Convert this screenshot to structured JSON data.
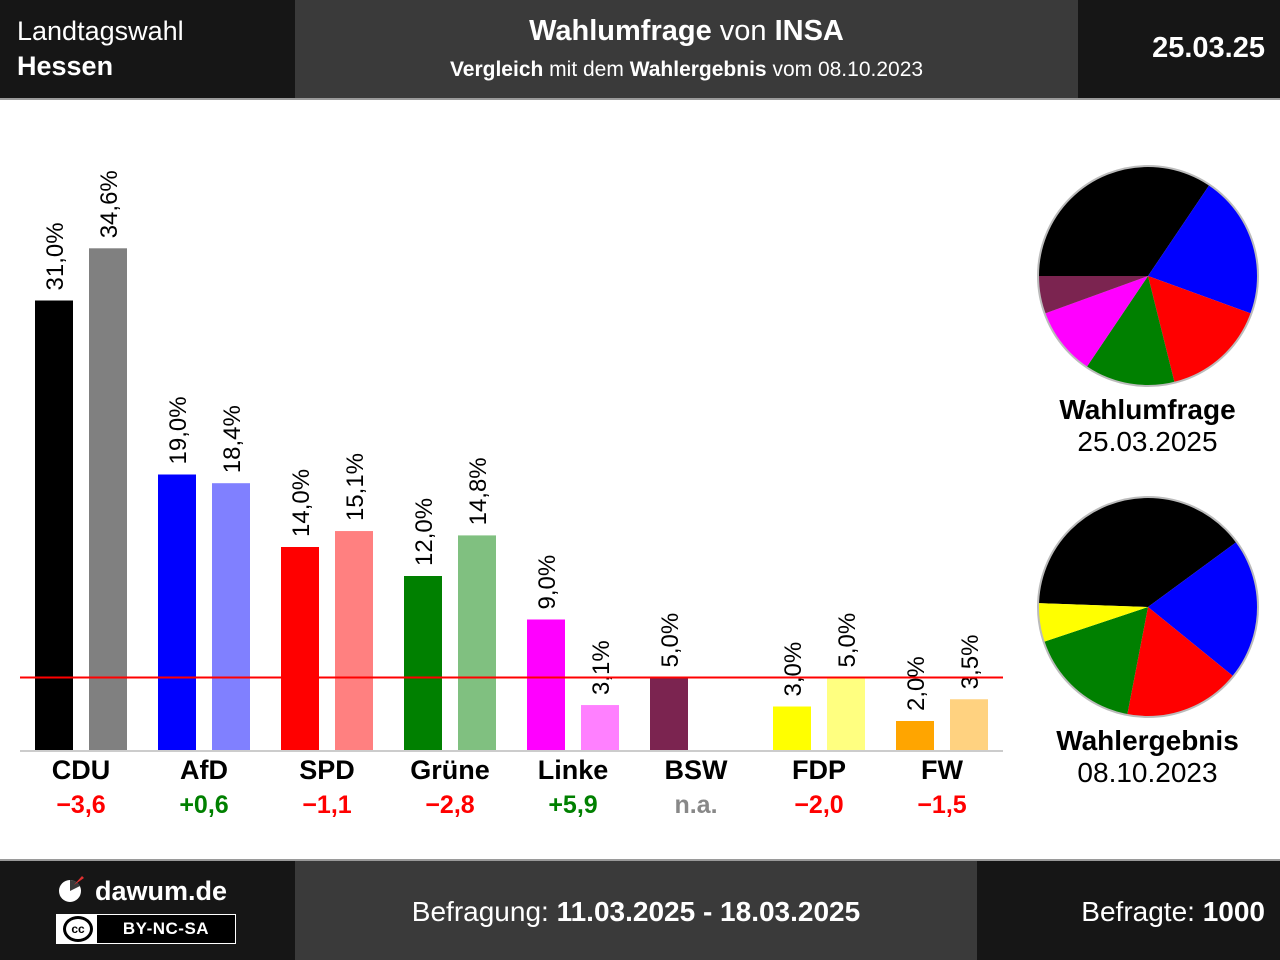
{
  "header": {
    "region_line1": "Landtagswahl",
    "region_line2": "Hessen",
    "title_bold1": "Wahlumfrage",
    "title_mid": " von ",
    "title_bold2": "INSA",
    "subtitle_bold1": "Vergleich",
    "subtitle_mid1": " mit dem ",
    "subtitle_bold2": "Wahlergebnis",
    "subtitle_mid2": " vom 08.10.2023",
    "date": "25.03.25"
  },
  "colors": {
    "threshold_line": "#ff0000",
    "diff_positive": "#008000",
    "diff_negative": "#ff0000",
    "diff_na": "#888888"
  },
  "chart_data": {
    "type": "bar",
    "categories": [
      "CDU",
      "AfD",
      "SPD",
      "Grüne",
      "Linke",
      "BSW",
      "FDP",
      "FW"
    ],
    "series": [
      {
        "values": [
          31.0,
          19.0,
          14.0,
          12.0,
          9.0,
          5.0,
          3.0,
          2.0
        ],
        "value_labels": [
          "31,0%",
          "19,0%",
          "14,0%",
          "12,0%",
          "9,0%",
          "5,0%",
          "3,0%",
          "2,0%"
        ],
        "colors": [
          "#000000",
          "#0000ff",
          "#ff0000",
          "#008000",
          "#ff00ff",
          "#7b2450",
          "#ffff00",
          "#ffa500"
        ]
      },
      {
        "values": [
          34.6,
          18.4,
          15.1,
          14.8,
          3.1,
          null,
          5.0,
          3.5
        ],
        "value_labels": [
          "34,6%",
          "18,4%",
          "15,1%",
          "14,8%",
          "3,1%",
          "",
          "5,0%",
          "3,5%"
        ],
        "colors": [
          "#808080",
          "#8080ff",
          "#ff8080",
          "#80c080",
          "#ff80ff",
          "#bd92a8",
          "#ffff80",
          "#ffd280"
        ]
      }
    ],
    "differences": [
      "−3,6",
      "+0,6",
      "−1,1",
      "−2,8",
      "+5,9",
      "n.a.",
      "−2,0",
      "−1,5"
    ],
    "difference_signs": [
      "neg",
      "pos",
      "neg",
      "neg",
      "pos",
      "na",
      "neg",
      "neg"
    ],
    "threshold": 5.0,
    "ylim": [
      0,
      36
    ],
    "grid": false
  },
  "pies": [
    {
      "title": "Wahlumfrage",
      "date": "25.03.2025",
      "slices": [
        {
          "party": "CDU",
          "value": 31.0,
          "color": "#000000"
        },
        {
          "party": "AfD",
          "value": 19.0,
          "color": "#0000ff"
        },
        {
          "party": "SPD",
          "value": 14.0,
          "color": "#ff0000"
        },
        {
          "party": "Grüne",
          "value": 12.0,
          "color": "#008000"
        },
        {
          "party": "Linke",
          "value": 9.0,
          "color": "#ff00ff"
        },
        {
          "party": "BSW",
          "value": 5.0,
          "color": "#7b2450"
        }
      ]
    },
    {
      "title": "Wahlergebnis",
      "date": "08.10.2023",
      "slices": [
        {
          "party": "CDU",
          "value": 34.6,
          "color": "#000000"
        },
        {
          "party": "AfD",
          "value": 18.4,
          "color": "#0000ff"
        },
        {
          "party": "SPD",
          "value": 15.1,
          "color": "#ff0000"
        },
        {
          "party": "Grüne",
          "value": 14.8,
          "color": "#008000"
        },
        {
          "party": "FDP",
          "value": 5.0,
          "color": "#ffff00"
        }
      ]
    }
  ],
  "footer": {
    "brand": "dawum.de",
    "license_cc": "cc",
    "license_text": "BY-NC-SA",
    "survey_label": "Befragung: ",
    "survey_period": "11.03.2025 - 18.03.2025",
    "respondents_label": "Befragte: ",
    "respondents_value": "1000"
  }
}
